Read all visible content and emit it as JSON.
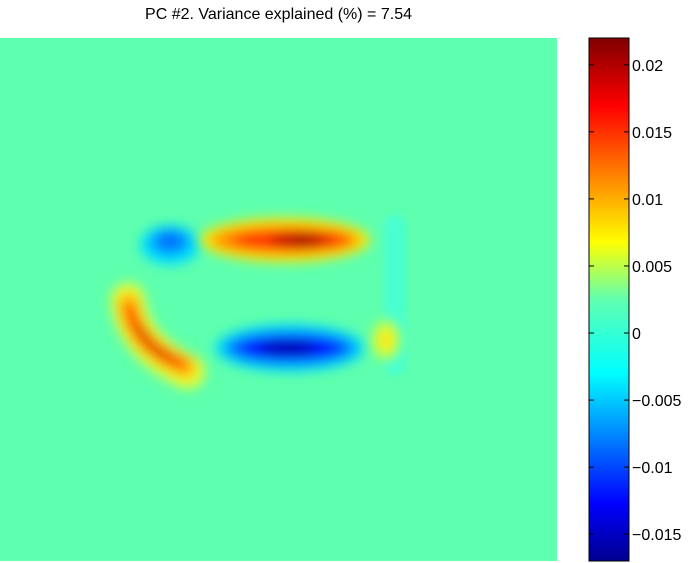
{
  "chart_data": {
    "type": "heatmap",
    "title": "PC #2. Variance explained (%) = 7.54",
    "colormap": "jet",
    "color_range": [
      -0.017,
      0.022
    ],
    "colorbar": {
      "ticks": [
        0.02,
        0.015,
        0.01,
        0.005,
        0,
        -0.005,
        -0.01,
        -0.015
      ],
      "tick_labels": [
        "0.02",
        "0.015",
        "0.01",
        "0.005",
        "0",
        "−0.005",
        "−0.01",
        "−0.015"
      ]
    },
    "background_value": 0,
    "features": [
      {
        "name": "upper-positive-band",
        "sign": "positive",
        "peak": 0.021
      },
      {
        "name": "lower-negative-band",
        "sign": "negative",
        "peak": -0.016
      },
      {
        "name": "left-positive-arc",
        "sign": "positive",
        "peak": 0.015
      },
      {
        "name": "upper-left-negative-blob",
        "sign": "negative",
        "peak": -0.005
      },
      {
        "name": "right-positive-blob",
        "sign": "positive",
        "peak": 0.006
      },
      {
        "name": "right-negative-strip",
        "sign": "negative",
        "peak": -0.002
      }
    ]
  }
}
